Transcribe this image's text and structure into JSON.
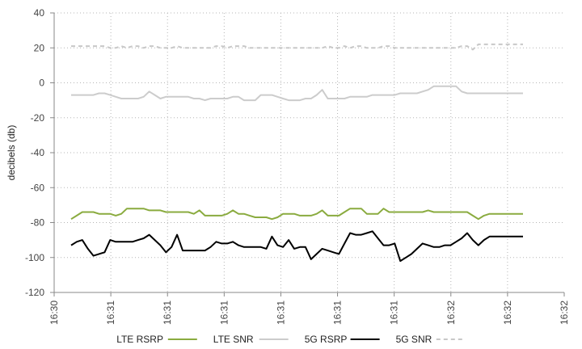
{
  "chart_data": {
    "type": "line",
    "title": "",
    "xlabel": "",
    "ylabel": "decibels (db)",
    "ylim": [
      -120,
      40
    ],
    "y_ticks": [
      40,
      20,
      0,
      -20,
      -40,
      -60,
      -80,
      -100,
      -120
    ],
    "x_tick_labels": [
      "16:30",
      "16:31",
      "16:31",
      "16:31",
      "16:31",
      "16:31",
      "16:31",
      "16:32",
      "16:32",
      "16:32"
    ],
    "grid": true,
    "legend_position": "bottom",
    "x": [
      0,
      1,
      2,
      3,
      4,
      5,
      6,
      7,
      8,
      9,
      10,
      11,
      12,
      13,
      14,
      15,
      16,
      17,
      18,
      19,
      20,
      21,
      22,
      23,
      24,
      25,
      26,
      27,
      28,
      29,
      30,
      31,
      32,
      33,
      34,
      35,
      36,
      37,
      38,
      39,
      40,
      41,
      42,
      43,
      44,
      45,
      46,
      47,
      48,
      49,
      50,
      51,
      52,
      53,
      54,
      55,
      56,
      57,
      58,
      59,
      60,
      61,
      62,
      63,
      64,
      65,
      66,
      67,
      68,
      69,
      70,
      71,
      72,
      73,
      74,
      75,
      76,
      77,
      78,
      79,
      80,
      81
    ],
    "series": [
      {
        "name": "LTE RSRP",
        "color": "#8aab3f",
        "dash": "solid",
        "values": [
          -78,
          -76,
          -74,
          -74,
          -74,
          -75,
          -75,
          -75,
          -76,
          -75,
          -72,
          -72,
          -72,
          -72,
          -73,
          -73,
          -73,
          -74,
          -74,
          -74,
          -74,
          -74,
          -75,
          -73,
          -76,
          -76,
          -76,
          -76,
          -75,
          -73,
          -75,
          -75,
          -76,
          -77,
          -77,
          -77,
          -78,
          -77,
          -75,
          -75,
          -75,
          -76,
          -76,
          -76,
          -75,
          -73,
          -76,
          -76,
          -76,
          -74,
          -72,
          -72,
          -72,
          -75,
          -75,
          -75,
          -72,
          -74,
          -74,
          -74,
          -74,
          -74,
          -74,
          -74,
          -73,
          -74,
          -74,
          -74,
          -74,
          -74,
          -74,
          -74,
          -76,
          -78,
          -76,
          -75,
          -75,
          -75,
          -75,
          -75,
          -75,
          -75
        ]
      },
      {
        "name": "LTE SNR",
        "color": "#cccccc",
        "dash": "solid",
        "values": [
          -7,
          -7,
          -7,
          -7,
          -7,
          -6,
          -6,
          -7,
          -8,
          -9,
          -9,
          -9,
          -9,
          -8,
          -5,
          -7,
          -9,
          -8,
          -8,
          -8,
          -8,
          -8,
          -9,
          -9,
          -10,
          -9,
          -9,
          -9,
          -9,
          -8,
          -8,
          -10,
          -10,
          -10,
          -7,
          -7,
          -7,
          -8,
          -9,
          -10,
          -10,
          -10,
          -9,
          -9,
          -7,
          -4,
          -9,
          -9,
          -9,
          -9,
          -8,
          -8,
          -8,
          -8,
          -7,
          -7,
          -7,
          -7,
          -7,
          -6,
          -6,
          -6,
          -6,
          -5,
          -4,
          -2,
          -2,
          -2,
          -2,
          -2,
          -5,
          -6,
          -6,
          -6,
          -6,
          -6,
          -6,
          -6,
          -6,
          -6,
          -6,
          -6
        ]
      },
      {
        "name": "5G RSRP",
        "color": "#000000",
        "dash": "solid",
        "values": [
          -93,
          -91,
          -90,
          -95,
          -99,
          -98,
          -97,
          -90,
          -91,
          -91,
          -91,
          -91,
          -90,
          -89,
          -87,
          -90,
          -93,
          -97,
          -94,
          -87,
          -96,
          -96,
          -96,
          -96,
          -96,
          -94,
          -91,
          -92,
          -92,
          -91,
          -93,
          -94,
          -94,
          -94,
          -94,
          -95,
          -88,
          -93,
          -94,
          -90,
          -95,
          -94,
          -94,
          -101,
          -98,
          -95,
          -96,
          -97,
          -98,
          -92,
          -86,
          -87,
          -87,
          -86,
          -85,
          -89,
          -93,
          -93,
          -92,
          -102,
          -100,
          -98,
          -95,
          -92,
          -93,
          -94,
          -94,
          -93,
          -93,
          -91,
          -89,
          -86,
          -90,
          -93,
          -90,
          -88,
          -88,
          -88,
          -88,
          -88,
          -88,
          -88
        ]
      },
      {
        "name": "5G SNR",
        "color": "#c8c8c8",
        "dash": "dashed",
        "values": [
          21,
          21,
          21,
          21,
          21,
          21,
          21,
          20,
          20,
          21,
          20,
          21,
          21,
          20,
          21,
          21,
          20,
          20,
          20,
          21,
          20,
          20,
          20,
          20,
          20,
          20,
          21,
          21,
          20,
          21,
          21,
          21,
          20,
          20,
          20,
          20,
          20,
          20,
          20,
          20,
          20,
          20,
          20,
          20,
          20,
          20,
          21,
          20,
          20,
          21,
          20,
          21,
          21,
          20,
          20,
          20,
          21,
          21,
          20,
          20,
          20,
          20,
          20,
          20,
          20,
          20,
          20,
          20,
          20,
          20,
          21,
          21,
          19,
          22,
          22,
          22,
          22,
          22,
          22,
          22,
          22,
          22
        ]
      }
    ]
  }
}
